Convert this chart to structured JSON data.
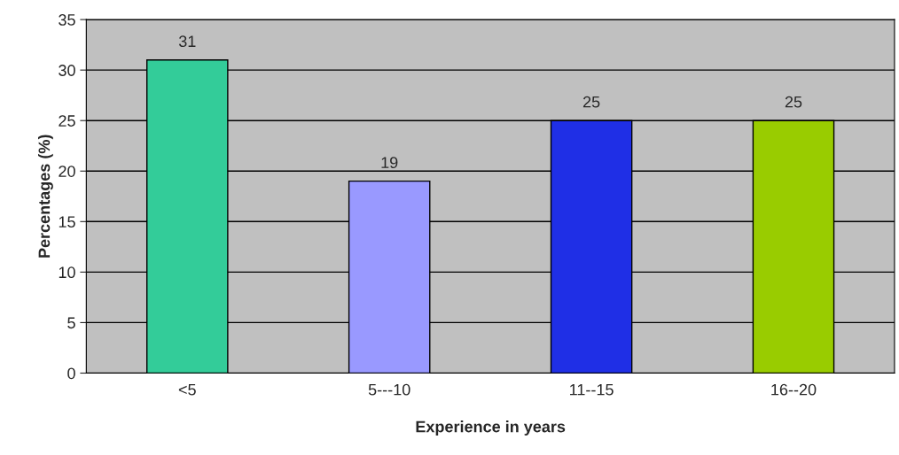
{
  "chart_data": {
    "type": "bar",
    "xlabel": "Experience in years",
    "ylabel": "Percentages (%)",
    "categories": [
      "<5",
      "5---10",
      "11--15",
      "16--20"
    ],
    "values": [
      31,
      19,
      25,
      25
    ],
    "colors": [
      "#33cc99",
      "#9999ff",
      "#1f2fe6",
      "#99cc00"
    ],
    "ylim": [
      0,
      35
    ],
    "yticks": [
      0,
      5,
      10,
      15,
      20,
      25,
      30,
      35
    ],
    "grid": "y",
    "data_labels": true
  }
}
